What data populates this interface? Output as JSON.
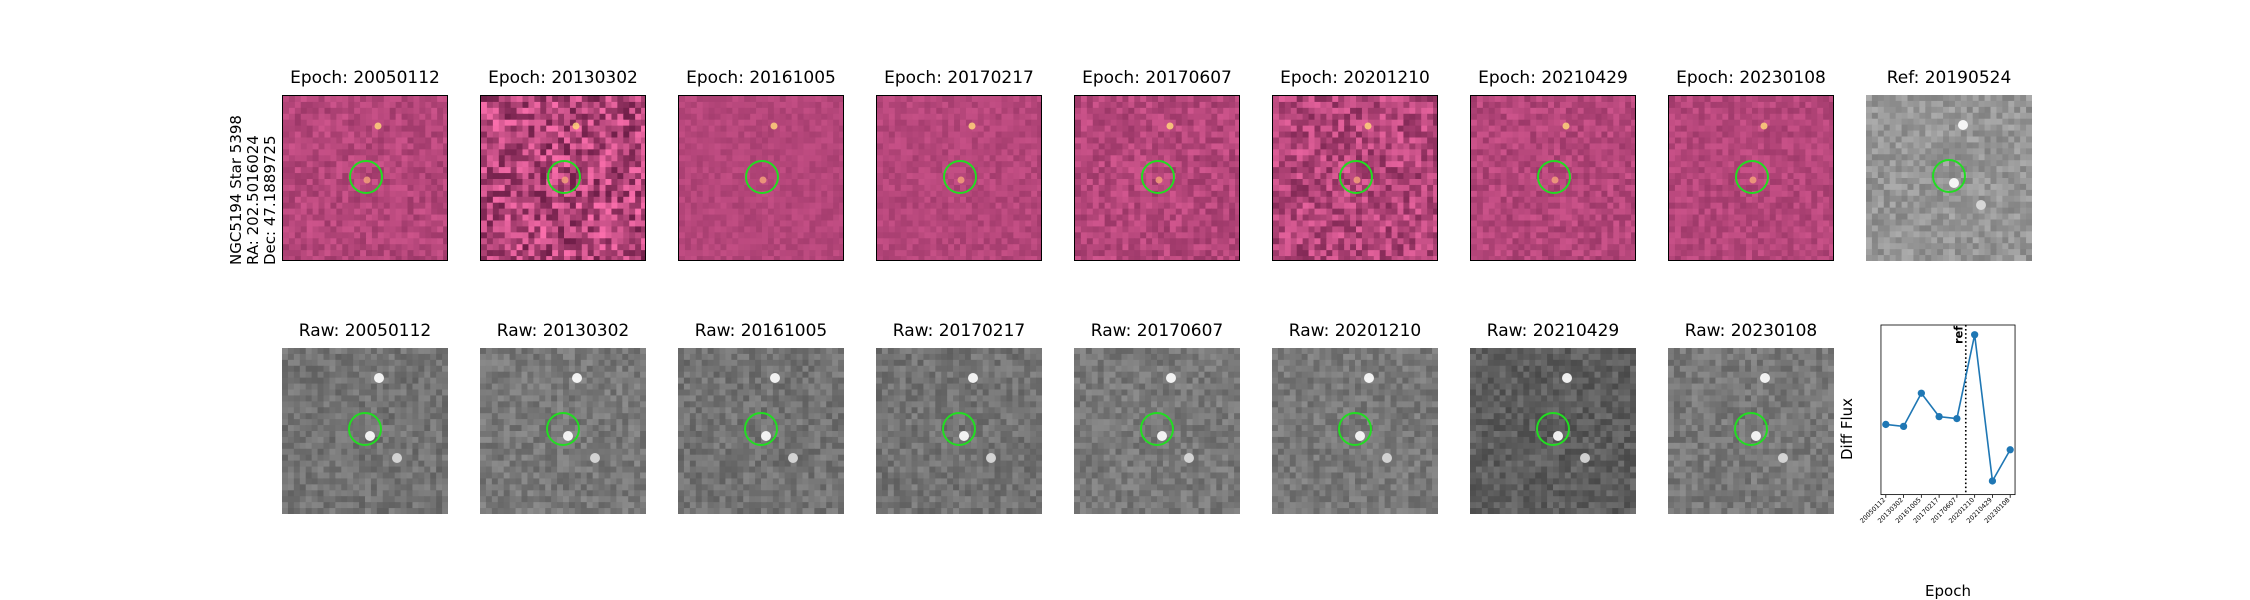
{
  "star_label": {
    "line1": "NGC5194 Star 5398",
    "line2": "RA: 202.5016024",
    "line3": "Dec: 47.1889725"
  },
  "diff_panels": [
    {
      "title": "Epoch: 20050112",
      "noise": 0.35
    },
    {
      "title": "Epoch: 20130302",
      "noise": 1.0
    },
    {
      "title": "Epoch: 20161005",
      "noise": 0.2
    },
    {
      "title": "Epoch: 20170217",
      "noise": 0.25
    },
    {
      "title": "Epoch: 20170607",
      "noise": 0.4
    },
    {
      "title": "Epoch: 20201210",
      "noise": 0.7
    },
    {
      "title": "Epoch: 20210429",
      "noise": 0.35
    },
    {
      "title": "Epoch: 20230108",
      "noise": 0.3
    }
  ],
  "ref_panel": {
    "title": "Ref: 20190524"
  },
  "raw_panels": [
    {
      "title": "Raw: 20050112",
      "brightness": 0.5
    },
    {
      "title": "Raw: 20130302",
      "brightness": 0.55
    },
    {
      "title": "Raw: 20161005",
      "brightness": 0.5
    },
    {
      "title": "Raw: 20170217",
      "brightness": 0.5
    },
    {
      "title": "Raw: 20170607",
      "brightness": 0.55
    },
    {
      "title": "Raw: 20201210",
      "brightness": 0.55
    },
    {
      "title": "Raw: 20210429",
      "brightness": 0.3
    },
    {
      "title": "Raw: 20230108",
      "brightness": 0.55
    }
  ],
  "colors": {
    "circle": "#22dd22",
    "line": "#1f77b4",
    "diff_base": "#b5467a",
    "raw_base": "#7a7a7a"
  },
  "chart_data": {
    "type": "line",
    "xlabel": "Epoch",
    "ylabel": "Diff Flux",
    "categories": [
      "20050112",
      "20130302",
      "20161005",
      "20170217",
      "20170607",
      "20201210",
      "20210429",
      "20230108"
    ],
    "values": [
      0.4,
      0.35,
      1.2,
      0.6,
      0.55,
      2.7,
      -1.05,
      -0.25
    ],
    "ylim": [
      -1.4,
      2.95
    ],
    "reference_line": {
      "label": "ref",
      "position_between": [
        "20170607",
        "20201210"
      ],
      "style": "dotted"
    }
  }
}
